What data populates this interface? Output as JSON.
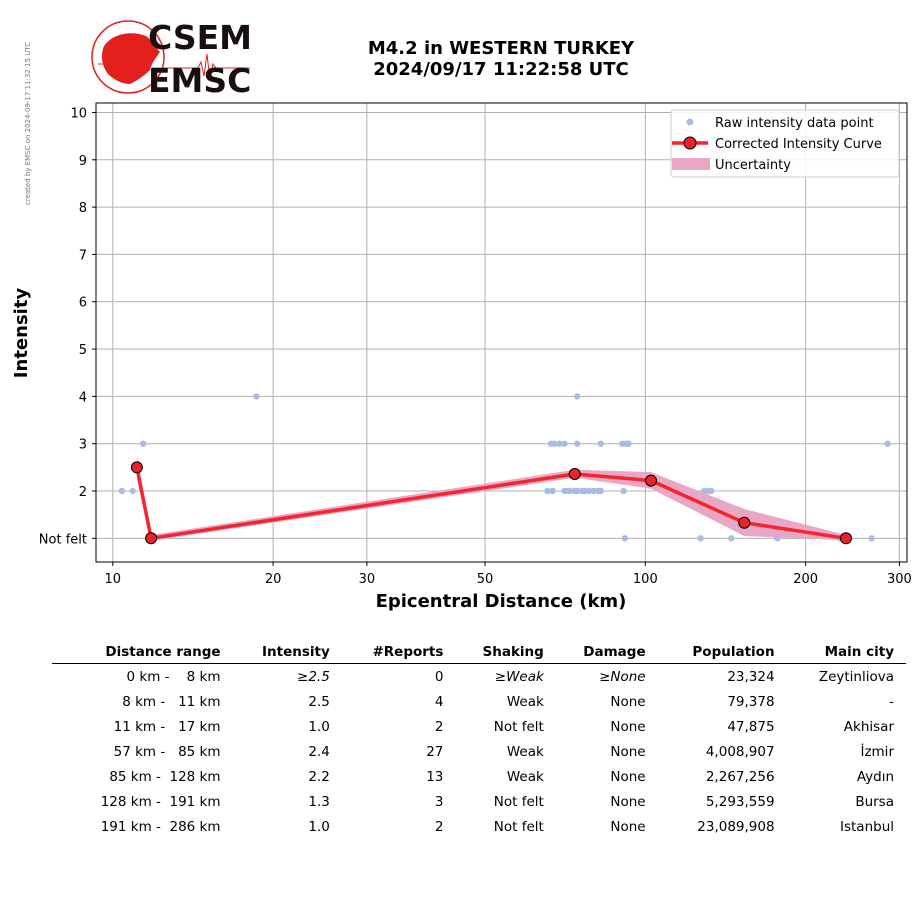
{
  "side_note": "created by EMSC on 2024-09-17 11:32:15 UTC",
  "logo": {
    "top": "CSEM",
    "bottom": "EMSC"
  },
  "title_line1": "M4.2 in WESTERN TURKEY",
  "title_line2": "2024/09/17 11:22:58 UTC",
  "colors": {
    "raw": "#aabbe6",
    "curve": "#f5242e",
    "marker": "#e8232b",
    "uncertainty": "#e8a7c4"
  },
  "chart_data": {
    "type": "line",
    "xlabel": "Epicentral Distance (km)",
    "ylabel": "Intensity",
    "x_scale": "log",
    "xlim": [
      9.3,
      310
    ],
    "ylim": [
      0.5,
      10.2
    ],
    "x_ticks": [
      10,
      20,
      30,
      50,
      100,
      200,
      300
    ],
    "y_ticks": [
      {
        "value": 1,
        "label": "Not felt"
      },
      {
        "value": 2,
        "label": "2"
      },
      {
        "value": 3,
        "label": "3"
      },
      {
        "value": 4,
        "label": "4"
      },
      {
        "value": 5,
        "label": "5"
      },
      {
        "value": 6,
        "label": "6"
      },
      {
        "value": 7,
        "label": "7"
      },
      {
        "value": 8,
        "label": "8"
      },
      {
        "value": 9,
        "label": "9"
      },
      {
        "value": 10,
        "label": "10"
      }
    ],
    "grid": true,
    "legend_position": "top-right",
    "legend": [
      "Raw intensity data point",
      "Corrected Intensity Curve",
      "Uncertainty"
    ],
    "raw_points": [
      [
        10.4,
        2
      ],
      [
        10.9,
        2
      ],
      [
        11.4,
        3
      ],
      [
        18.6,
        4
      ],
      [
        65.5,
        2
      ],
      [
        66.5,
        3
      ],
      [
        67,
        2
      ],
      [
        67.5,
        3
      ],
      [
        69,
        3
      ],
      [
        70.5,
        2
      ],
      [
        70.5,
        3
      ],
      [
        71.5,
        2
      ],
      [
        72,
        2
      ],
      [
        73.5,
        2
      ],
      [
        74.5,
        4
      ],
      [
        74.5,
        3
      ],
      [
        74.5,
        2
      ],
      [
        76,
        2
      ],
      [
        77,
        2
      ],
      [
        78.5,
        2
      ],
      [
        80,
        2
      ],
      [
        81.5,
        2
      ],
      [
        82.5,
        3
      ],
      [
        82.5,
        2
      ],
      [
        90.5,
        3
      ],
      [
        91,
        2
      ],
      [
        92,
        3
      ],
      [
        93,
        3
      ],
      [
        91.5,
        1
      ],
      [
        127,
        1
      ],
      [
        129,
        2
      ],
      [
        131,
        2
      ],
      [
        133,
        2
      ],
      [
        145,
        1
      ],
      [
        177,
        1
      ],
      [
        232,
        1
      ],
      [
        266,
        1
      ],
      [
        285,
        3
      ]
    ],
    "curve": {
      "x": [
        11.1,
        11.8,
        73.7,
        102.5,
        153.4,
        238.1
      ],
      "y": [
        2.5,
        1.0,
        2.36,
        2.22,
        1.33,
        1.0
      ]
    },
    "uncertainty": {
      "x": [
        11.1,
        11.8,
        73.7,
        102.5,
        153.4,
        238.1
      ],
      "upper": [
        2.75,
        1.07,
        2.45,
        2.4,
        1.62,
        1.07
      ],
      "lower": [
        2.25,
        0.95,
        2.28,
        2.05,
        1.05,
        0.96
      ]
    }
  },
  "table": {
    "headers": [
      "Distance range",
      "Intensity",
      "#Reports",
      "Shaking",
      "Damage",
      "Population",
      "Main city"
    ],
    "rows": [
      [
        "0 km -    8 km",
        "≥2.5",
        "0",
        "≥Weak",
        "≥None",
        "23,324",
        "Zeytinliova"
      ],
      [
        "8 km -   11 km",
        "2.5",
        "4",
        "Weak",
        "None",
        "79,378",
        "-"
      ],
      [
        "11 km -   17 km",
        "1.0",
        "2",
        "Not felt",
        "None",
        "47,875",
        "Akhisar"
      ],
      [
        "57 km -   85 km",
        "2.4",
        "27",
        "Weak",
        "None",
        "4,008,907",
        "İzmir"
      ],
      [
        "85 km -  128 km",
        "2.2",
        "13",
        "Weak",
        "None",
        "2,267,256",
        "Aydın"
      ],
      [
        "128 km -  191 km",
        "1.3",
        "3",
        "Not felt",
        "None",
        "5,293,559",
        "Bursa"
      ],
      [
        "191 km -  286 km",
        "1.0",
        "2",
        "Not felt",
        "None",
        "23,089,908",
        "Istanbul"
      ]
    ]
  }
}
